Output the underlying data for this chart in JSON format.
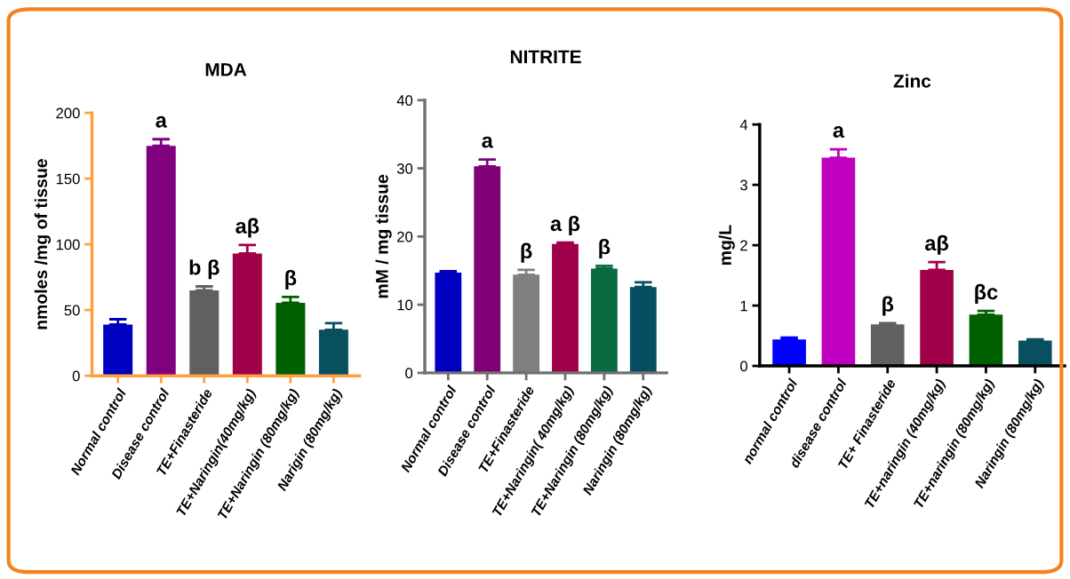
{
  "chart_data": [
    {
      "type": "bar",
      "title": "MDA",
      "ylabel": "nmoles /mg of tissue",
      "categories": [
        "Normal control",
        "Disease control",
        "TE+Finasteride",
        "TE+Naringin(40mg/kg)",
        "TE+Naringin (80mg/kg)",
        "Narigin (80mg/kg)"
      ],
      "values": [
        39,
        175,
        65,
        93,
        55.5,
        35
      ],
      "errors": [
        [
          39,
          43
        ],
        [
          175,
          180
        ],
        [
          65,
          68
        ],
        [
          93,
          99.5
        ],
        [
          55.5,
          60
        ],
        [
          35,
          40
        ]
      ],
      "colors": [
        "#0000c0",
        "#800080",
        "#606060",
        "#a00048",
        "#006000",
        "#084f60"
      ],
      "ylim": [
        0,
        200
      ],
      "yticks": [
        0,
        50,
        100,
        150,
        200
      ],
      "annotations": [
        {
          "text": "a",
          "x": "Disease control",
          "y": 180
        },
        {
          "text": "b β",
          "x": "TE+Finasteride",
          "y": 68
        },
        {
          "text": "aβ",
          "x": "TE+Naringin(40mg/kg)",
          "y": 99.5
        },
        {
          "text": "β",
          "x": "TE+Naringin (80mg/kg)",
          "y": 60
        }
      ]
    },
    {
      "type": "bar",
      "title": "NITRITE",
      "ylabel": "mM / mg tissue",
      "categories": [
        "Normal control",
        "Disease control",
        "TE+Finasteride",
        "TE+Naringin( 40mg/kg)",
        "TE+Naringin (80mg/kg)",
        "Naringin (80mg/kg)"
      ],
      "values": [
        14.7,
        30.3,
        14.4,
        18.9,
        15.3,
        12.6
      ],
      "errors": [
        [
          14.7,
          14.9
        ],
        [
          30.3,
          31.3
        ],
        [
          14.4,
          15.1
        ],
        [
          18.9,
          19.1
        ],
        [
          15.3,
          15.7
        ],
        [
          12.6,
          13.3
        ]
      ],
      "colors": [
        "#0000c0",
        "#800078",
        "#808080",
        "#a0004a",
        "#076a40",
        "#064f62"
      ],
      "ylim": [
        0,
        40
      ],
      "yticks": [
        0,
        10,
        20,
        30,
        40
      ],
      "annotations": [
        {
          "text": "a",
          "x": "Disease control",
          "y": 31.3
        },
        {
          "text": "β",
          "x": "TE+Finasteride",
          "y": 15.1
        },
        {
          "text": "a β",
          "x": "TE+Naringin( 40mg/kg)",
          "y": 19.1
        },
        {
          "text": "β",
          "x": "TE+Naringin (80mg/kg)",
          "y": 15.7
        }
      ]
    },
    {
      "type": "bar",
      "title": "Zinc",
      "ylabel": "mg/L",
      "categories": [
        "normal control",
        "disease control",
        "TE+ Finasteride",
        "TE+naringin (40mg/kg)",
        "TE+naringin (80mg/kg)",
        "Naringin (80mg/kg)"
      ],
      "values": [
        0.44,
        3.45,
        0.69,
        1.59,
        0.85,
        0.42
      ],
      "errors": [
        [
          0.44,
          0.47
        ],
        [
          3.45,
          3.59
        ],
        [
          0.69,
          0.71
        ],
        [
          1.59,
          1.72
        ],
        [
          0.85,
          0.91
        ],
        [
          0.42,
          0.44
        ]
      ],
      "colors": [
        "#0000ff",
        "#c000c0",
        "#606060",
        "#a00048",
        "#006000",
        "#084f60"
      ],
      "ylim": [
        0,
        4
      ],
      "yticks": [
        0,
        1,
        2,
        3,
        4
      ],
      "annotations": [
        {
          "text": "a",
          "x": "disease control",
          "y": 3.59
        },
        {
          "text": "β",
          "x": "TE+ Finasteride",
          "y": 0.71
        },
        {
          "text": "aβ",
          "x": "TE+naringin (40mg/kg)",
          "y": 1.72
        },
        {
          "text": "βc",
          "x": "TE+naringin (80mg/kg)",
          "y": 0.91
        }
      ]
    }
  ]
}
